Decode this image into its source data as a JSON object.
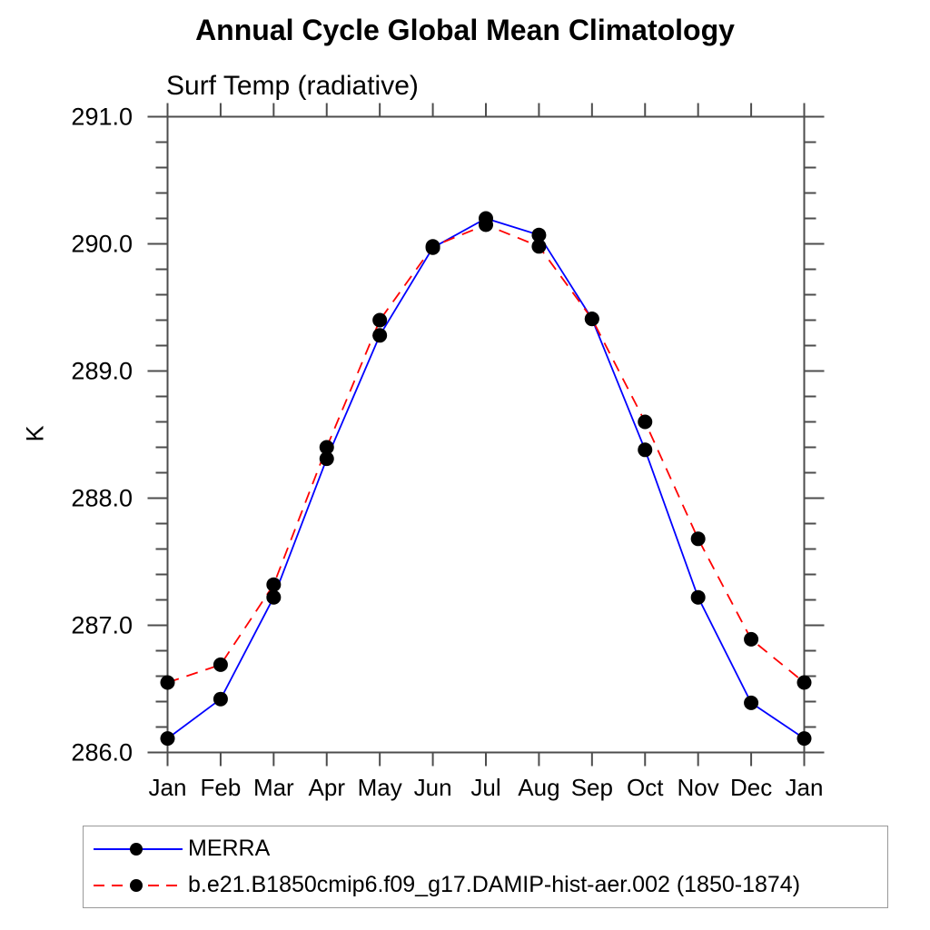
{
  "title": "Annual Cycle Global Mean Climatology",
  "subtitle": "Surf Temp (radiative)",
  "ylabel": "K",
  "chart_data": {
    "type": "line",
    "title": "Annual Cycle Global Mean Climatology",
    "subtitle": "Surf Temp (radiative)",
    "xlabel": "",
    "ylabel": "K",
    "x_categories": [
      "Jan",
      "Feb",
      "Mar",
      "Apr",
      "May",
      "Jun",
      "Jul",
      "Aug",
      "Sep",
      "Oct",
      "Nov",
      "Dec",
      "Jan"
    ],
    "ylim": [
      286.0,
      291.0
    ],
    "yticks": [
      286.0,
      287.0,
      288.0,
      289.0,
      290.0,
      291.0
    ],
    "ytick_labels": [
      "286.0",
      "287.0",
      "288.0",
      "289.0",
      "290.0",
      "291.0"
    ],
    "y_minor_step": 0.2,
    "grid": "off",
    "ticks_direction": "outward",
    "axis_color": "#4d4d4d",
    "marker_color": "#000000",
    "legend_position": "bottom-left",
    "series": [
      {
        "name": "MERRA",
        "color": "#0000ff",
        "style": "solid",
        "marker": "filled-circle",
        "values": [
          286.11,
          286.42,
          287.22,
          288.31,
          289.28,
          289.97,
          290.2,
          290.07,
          289.41,
          288.38,
          287.22,
          286.39,
          286.11
        ]
      },
      {
        "name": "b.e21.B1850cmip6.f09_g17.DAMIP-hist-aer.002 (1850-1874)",
        "color": "#ff0000",
        "style": "dashed",
        "marker": "filled-circle",
        "values": [
          286.55,
          286.69,
          287.32,
          288.4,
          289.4,
          289.98,
          290.15,
          289.98,
          289.41,
          288.6,
          287.68,
          286.89,
          286.55
        ]
      }
    ]
  }
}
